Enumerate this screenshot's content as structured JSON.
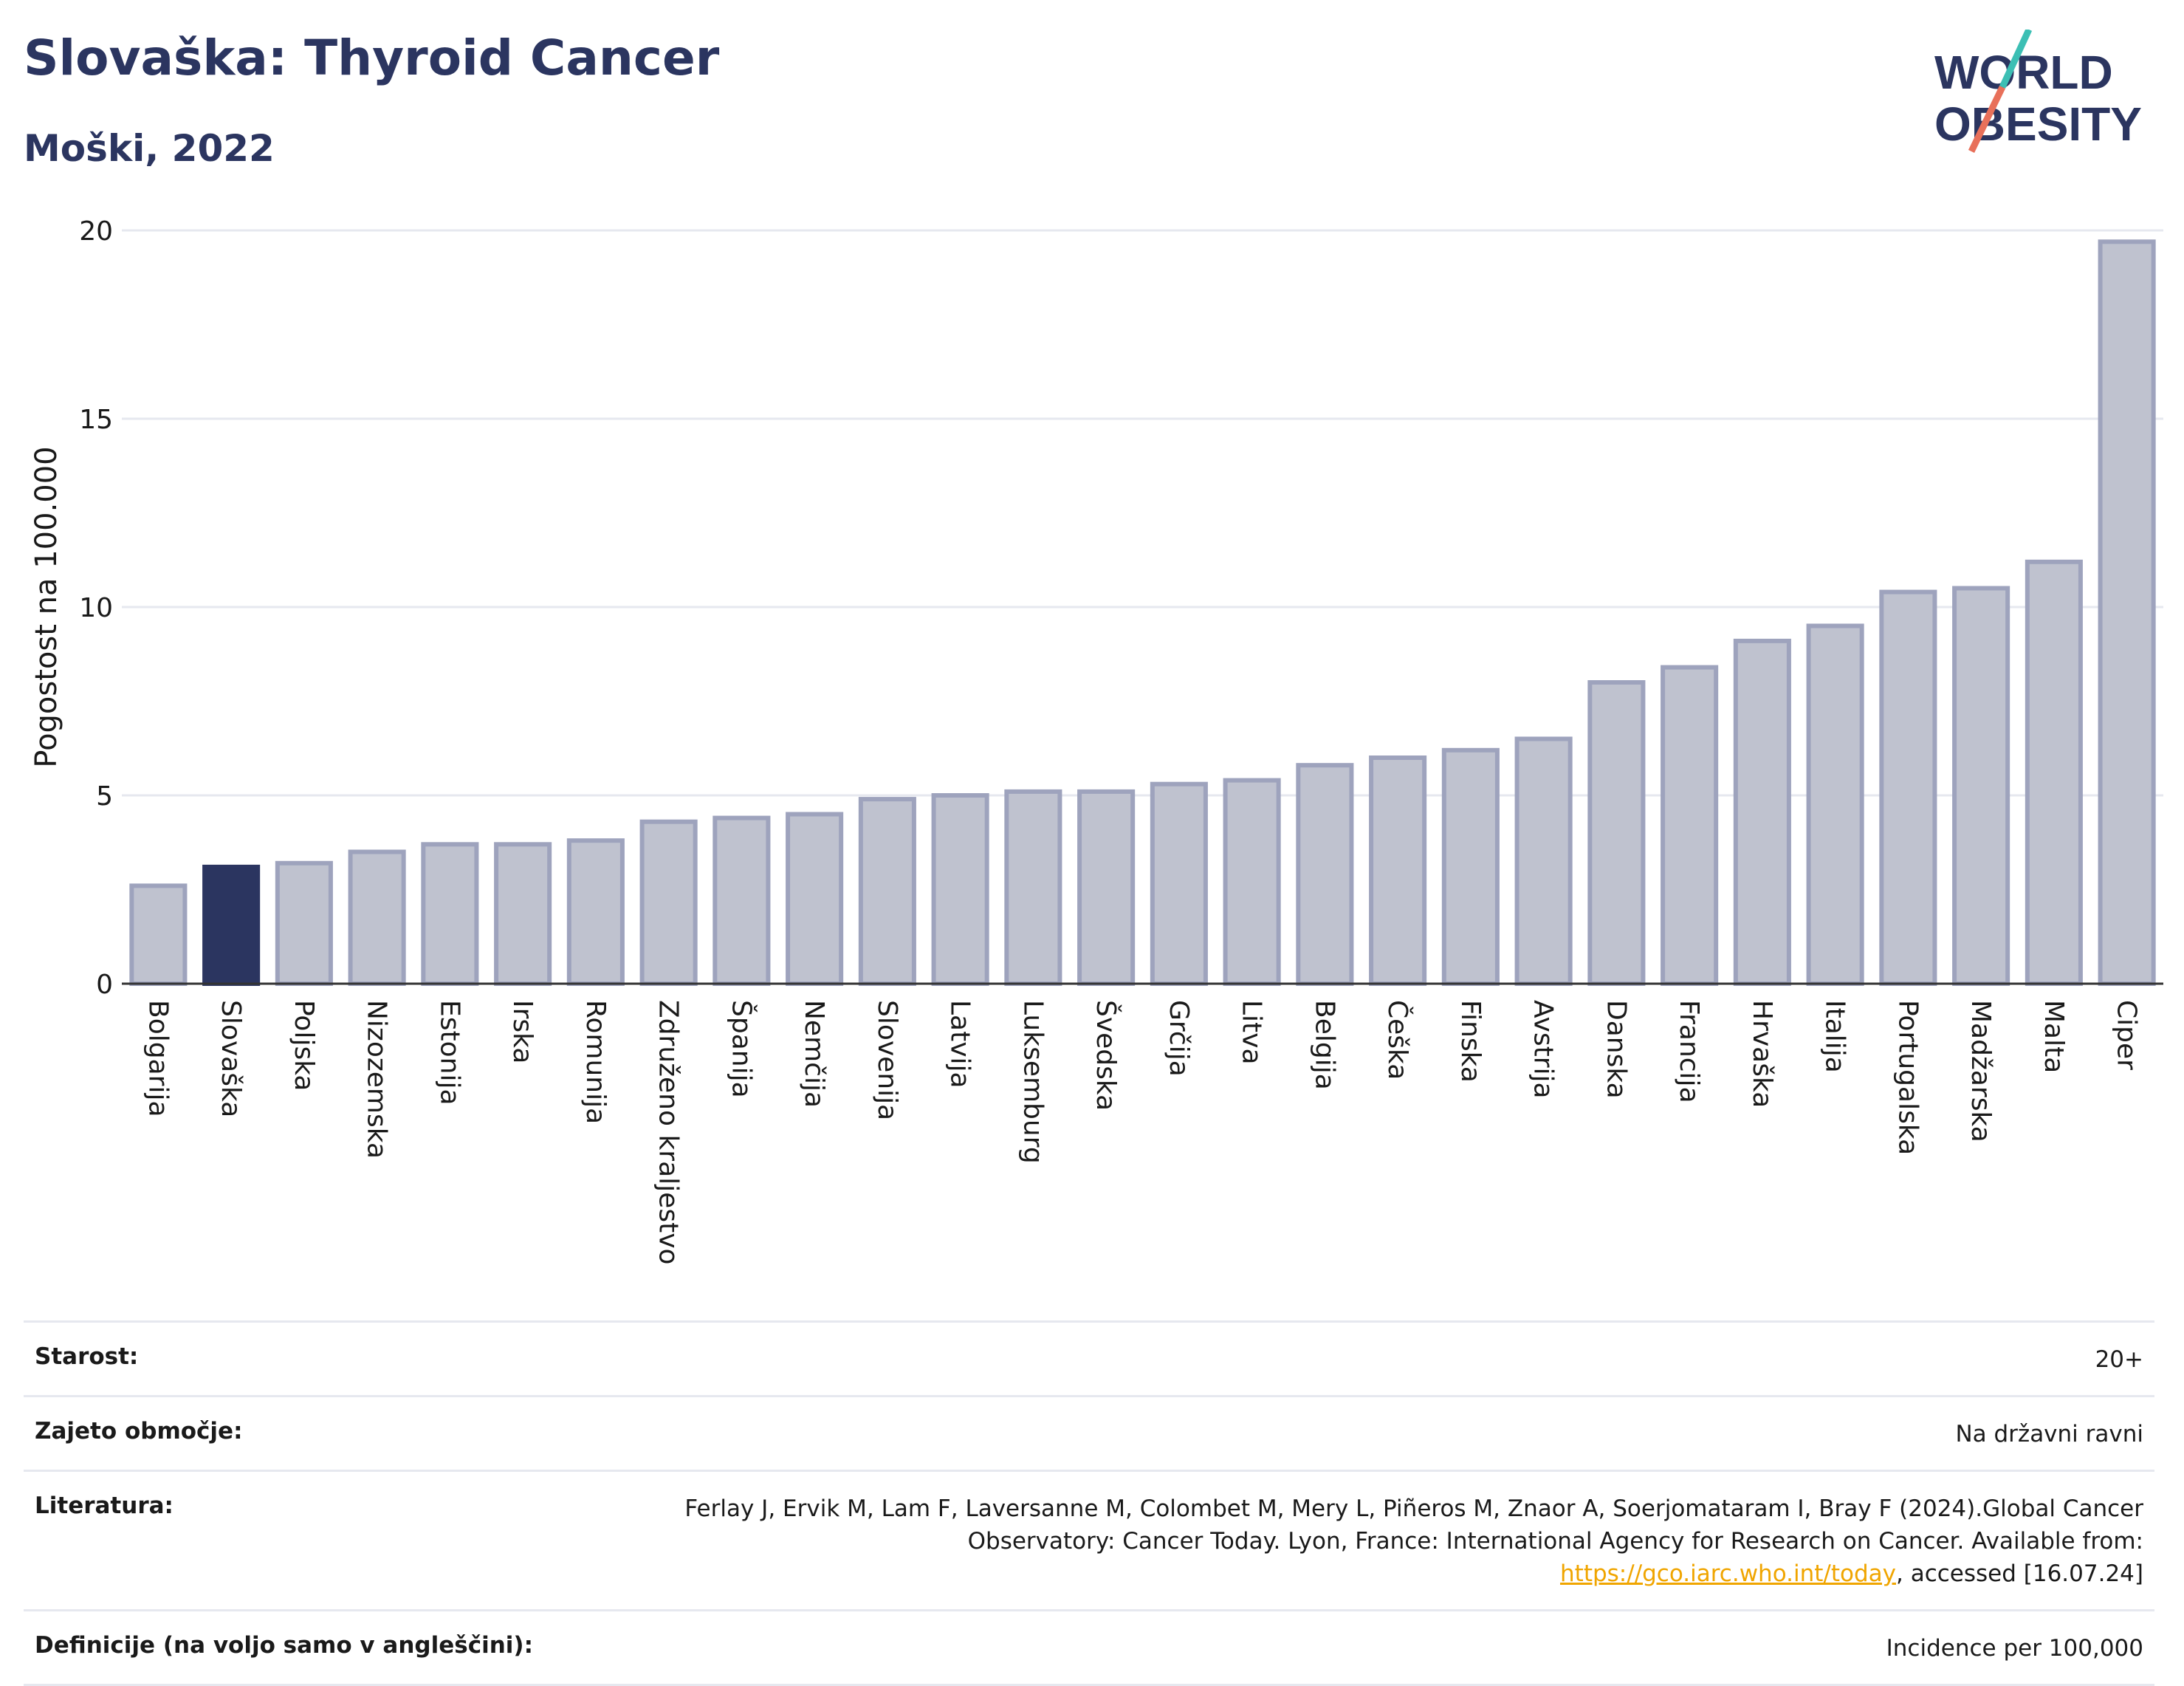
{
  "header": {
    "title": "Slovaška: Thyroid Cancer",
    "subtitle": "Moški, 2022"
  },
  "logo": {
    "line1": "WORLD",
    "line2": "OBESITY"
  },
  "chart_data": {
    "type": "bar",
    "title": "Slovaška: Thyroid Cancer",
    "subtitle": "Moški, 2022",
    "ylabel": "Pogostost na 100.000",
    "xlabel": "",
    "ylim": [
      0,
      20
    ],
    "yticks": [
      0,
      5,
      10,
      15,
      20
    ],
    "grid": true,
    "highlight": "Slovaška",
    "colors": {
      "bar": "#bfc2cf",
      "bar_border": "#9ea3bd",
      "highlight": "#2b3560",
      "grid": "#e6e8ef",
      "axis": "#333333"
    },
    "categories": [
      "Bolgarija",
      "Slovaška",
      "Poljska",
      "Nizozemska",
      "Estonija",
      "Irska",
      "Romunija",
      "Združeno kraljestvo",
      "Španija",
      "Nemčija",
      "Slovenija",
      "Latvija",
      "Luksemburg",
      "Švedska",
      "Grčija",
      "Litva",
      "Belgija",
      "Češka",
      "Finska",
      "Avstrija",
      "Danska",
      "Francija",
      "Hrvaška",
      "Italija",
      "Portugalska",
      "Madžarska",
      "Malta",
      "Ciper"
    ],
    "values": [
      2.6,
      3.1,
      3.2,
      3.5,
      3.7,
      3.7,
      3.8,
      4.3,
      4.4,
      4.5,
      4.9,
      5.0,
      5.1,
      5.1,
      5.3,
      5.4,
      5.8,
      6.0,
      6.2,
      6.5,
      8.0,
      8.4,
      9.1,
      9.5,
      10.4,
      10.5,
      11.2,
      19.7
    ]
  },
  "meta": {
    "age_label": "Starost:",
    "age_value": "20+",
    "coverage_label": "Zajeto območje:",
    "coverage_value": "Na državni ravni",
    "ref_label": "Literatura:",
    "ref_text_1": "Ferlay J, Ervik M, Lam F, Laversanne M, Colombet M, Mery L, Piñeros M, Znaor A, Soerjomataram I, Bray F (2024).Global Cancer Observatory: Cancer Today. Lyon, France: International Agency for Research on Cancer. Available from: ",
    "ref_link": "https://gco.iarc.who.int/today",
    "ref_text_2": ", accessed [16.07.24]",
    "def_label": "Definicije (na voljo samo v angleščini):",
    "def_value": "Incidence per 100,000"
  }
}
